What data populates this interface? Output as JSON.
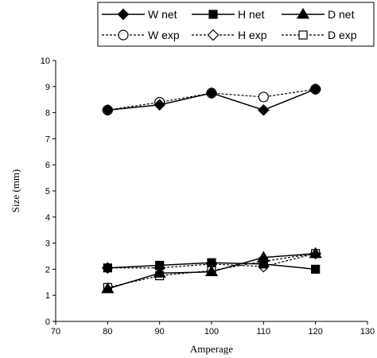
{
  "chart_data": {
    "type": "line",
    "xlabel": "Amperage",
    "ylabel": "Size (mm)",
    "xlim": [
      70,
      130
    ],
    "ylim": [
      0,
      10
    ],
    "xticks": [
      70,
      80,
      90,
      100,
      110,
      120,
      130
    ],
    "yticks": [
      0,
      1,
      2,
      3,
      4,
      5,
      6,
      7,
      8,
      9,
      10
    ],
    "grid": false,
    "legend_position": "top",
    "x": [
      80,
      90,
      100,
      110,
      120
    ],
    "series": [
      {
        "name": "W net",
        "style": "solid",
        "marker": "diamond",
        "filled": true,
        "values": [
          8.1,
          8.3,
          8.75,
          8.1,
          8.9
        ]
      },
      {
        "name": "H net",
        "style": "solid",
        "marker": "square",
        "filled": true,
        "values": [
          2.05,
          2.15,
          2.25,
          2.2,
          2.0
        ]
      },
      {
        "name": "D net",
        "style": "solid",
        "marker": "triangle",
        "filled": true,
        "values": [
          1.25,
          1.85,
          1.9,
          2.45,
          2.6
        ]
      },
      {
        "name": "W exp",
        "style": "dashed",
        "marker": "circle",
        "filled": false,
        "values": [
          8.1,
          8.4,
          8.75,
          8.6,
          8.9
        ]
      },
      {
        "name": "H exp",
        "style": "dashed",
        "marker": "diamond",
        "filled": false,
        "values": [
          2.05,
          2.05,
          2.2,
          2.1,
          2.6
        ]
      },
      {
        "name": "D exp",
        "style": "dashed",
        "marker": "square",
        "filled": false,
        "values": [
          1.3,
          1.75,
          1.95,
          2.3,
          2.6
        ]
      }
    ]
  }
}
